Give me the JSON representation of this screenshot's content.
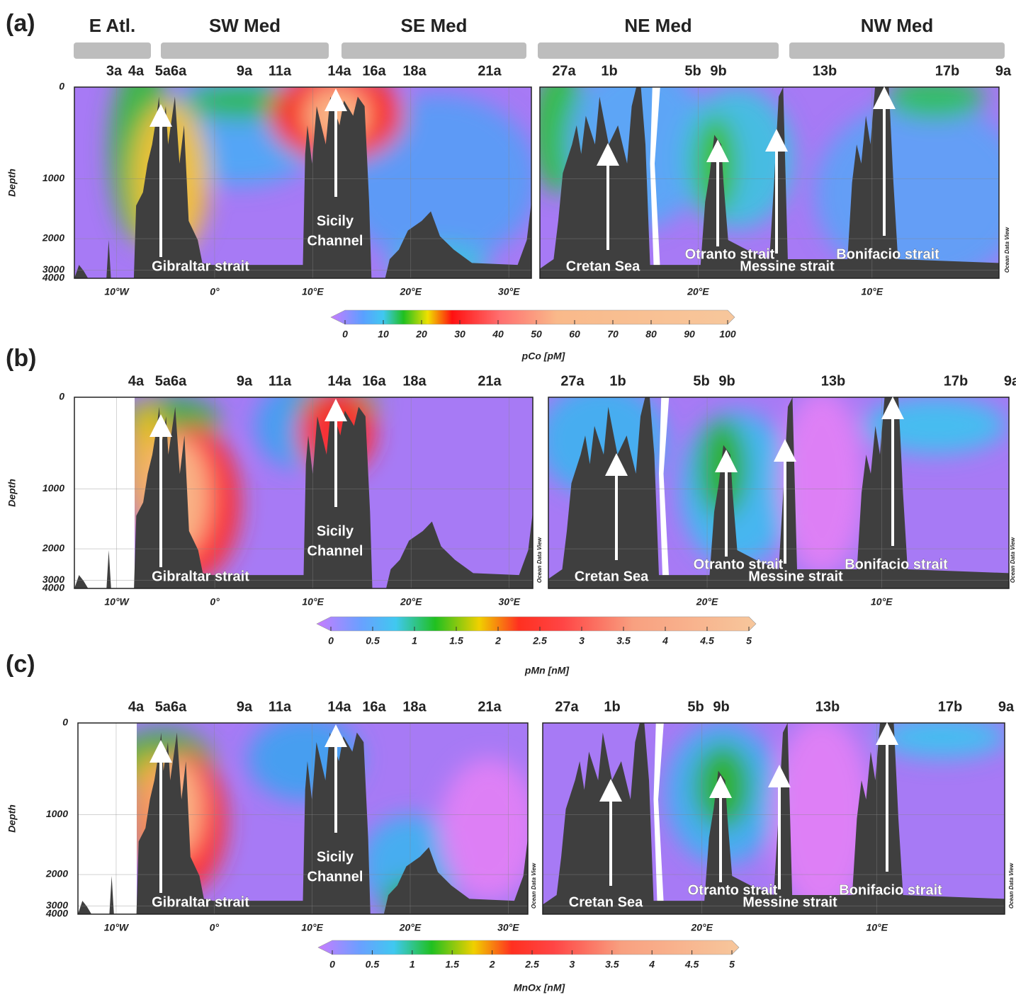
{
  "chart_data": [
    {
      "type": "section",
      "panel": "(a)",
      "regions": [
        "E Atl.",
        "SW Med",
        "SE Med",
        "NE Med",
        "NW Med"
      ],
      "stations": [
        "3a",
        "4a",
        "5a6a",
        "9a",
        "11a",
        "14a",
        "16a",
        "18a",
        "21a",
        "27a",
        "1b",
        "5b",
        "9b",
        "13b",
        "17b",
        "9a"
      ],
      "y_label": "Depth",
      "ylim": [
        0,
        4000
      ],
      "yticks": [
        0,
        1000,
        2000,
        3000,
        4000
      ],
      "xlim": [
        -14.3,
        32.3
      ],
      "xticks": [
        {
          "value": -10,
          "label": "10°W"
        },
        {
          "value": 0,
          "label": "0°"
        },
        {
          "value": 10,
          "label": "10°E"
        },
        {
          "value": 20,
          "label": "20°E"
        },
        {
          "value": 30,
          "label": "30°E"
        }
      ],
      "x2lim": [
        29.1,
        2.7
      ],
      "x2ticks": [
        {
          "value": 20,
          "label": "20°E"
        },
        {
          "value": 10,
          "label": "10°E"
        }
      ],
      "annotations": [
        "Gibraltar strait",
        "Sicily",
        "Channel",
        "Cretan Sea",
        "Otranto strait",
        "Messine strait",
        "Bonifacio strait"
      ],
      "watermark": "Ocean Data View",
      "colorbar": {
        "label": "pCo [pM]",
        "lim": [
          0,
          100
        ],
        "ticks": [
          0,
          10,
          20,
          30,
          40,
          50,
          60,
          70,
          80,
          90,
          100
        ]
      }
    },
    {
      "type": "section",
      "panel": "(b)",
      "stations": [
        "4a",
        "5a6a",
        "9a",
        "11a",
        "14a",
        "16a",
        "18a",
        "21a",
        "27a",
        "1b",
        "5b",
        "9b",
        "13b",
        "17b",
        "9a"
      ],
      "y_label": "Depth",
      "ylim": [
        0,
        4000
      ],
      "yticks": [
        0,
        1000,
        2000,
        3000,
        4000
      ],
      "xlim": [
        -14.3,
        32.4
      ],
      "xticks": [
        {
          "value": -10,
          "label": "10°W"
        },
        {
          "value": 0,
          "label": "0°"
        },
        {
          "value": 10,
          "label": "10°E"
        },
        {
          "value": 20,
          "label": "20°E"
        },
        {
          "value": 30,
          "label": "30°E"
        }
      ],
      "x2lim": [
        29.1,
        2.7
      ],
      "x2ticks": [
        {
          "value": 20,
          "label": "20°E"
        },
        {
          "value": 10,
          "label": "10°E"
        }
      ],
      "annotations": [
        "Gibraltar strait",
        "Sicily",
        "Channel",
        "Cretan Sea",
        "Otranto strait",
        "Messine strait",
        "Bonifacio strait"
      ],
      "watermark": "Ocean Data View",
      "colorbar": {
        "label": "pMn [nM]",
        "lim": [
          0,
          5
        ],
        "ticks": [
          0,
          0.5,
          1,
          1.5,
          2,
          2.5,
          3,
          3.5,
          4,
          4.5,
          5
        ]
      }
    },
    {
      "type": "section",
      "panel": "(c)",
      "stations": [
        "4a",
        "5a6a",
        "9a",
        "11a",
        "14a",
        "16a",
        "18a",
        "21a",
        "27a",
        "1b",
        "5b",
        "9b",
        "13b",
        "17b",
        "9a"
      ],
      "y_label": "Depth",
      "ylim": [
        0,
        4000
      ],
      "yticks": [
        0,
        1000,
        2000,
        3000,
        4000
      ],
      "xlim": [
        -13.9,
        32.0
      ],
      "xticks": [
        {
          "value": -10,
          "label": "10°W"
        },
        {
          "value": 0,
          "label": "0°"
        },
        {
          "value": 10,
          "label": "10°E"
        },
        {
          "value": 20,
          "label": "20°E"
        },
        {
          "value": 30,
          "label": "30°E"
        }
      ],
      "x2lim": [
        29.1,
        2.7
      ],
      "x2ticks": [
        {
          "value": 20,
          "label": "20°E"
        },
        {
          "value": 10,
          "label": "10°E"
        }
      ],
      "annotations": [
        "Gibraltar strait",
        "Sicily",
        "Channel",
        "Cretan Sea",
        "Otranto strait",
        "Messine strait",
        "Bonifacio strait"
      ],
      "watermark": "Ocean Data View",
      "colorbar": {
        "label": "MnOx [nM]",
        "lim": [
          0,
          5
        ],
        "ticks": [
          0,
          0.5,
          1,
          1.5,
          2,
          2.5,
          3,
          3.5,
          4,
          4.5,
          5
        ]
      }
    }
  ]
}
